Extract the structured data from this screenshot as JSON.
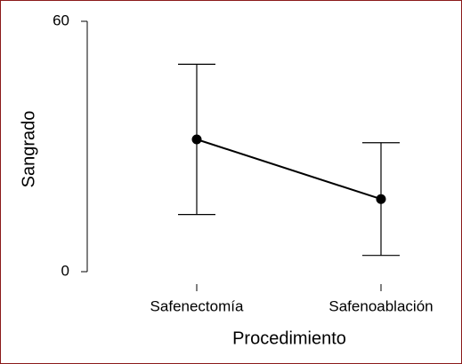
{
  "chart_data": {
    "type": "errorbar-line",
    "x_label": "Procedimiento",
    "y_label": "Sangrado",
    "categories": [
      "Safenectomía",
      "Safenoablación"
    ],
    "values": [
      31.7,
      17.4
    ],
    "errors": [
      18,
      13.5
    ],
    "color": "#000000",
    "ylim": [
      0,
      60
    ],
    "yticks": [
      0,
      60
    ]
  }
}
